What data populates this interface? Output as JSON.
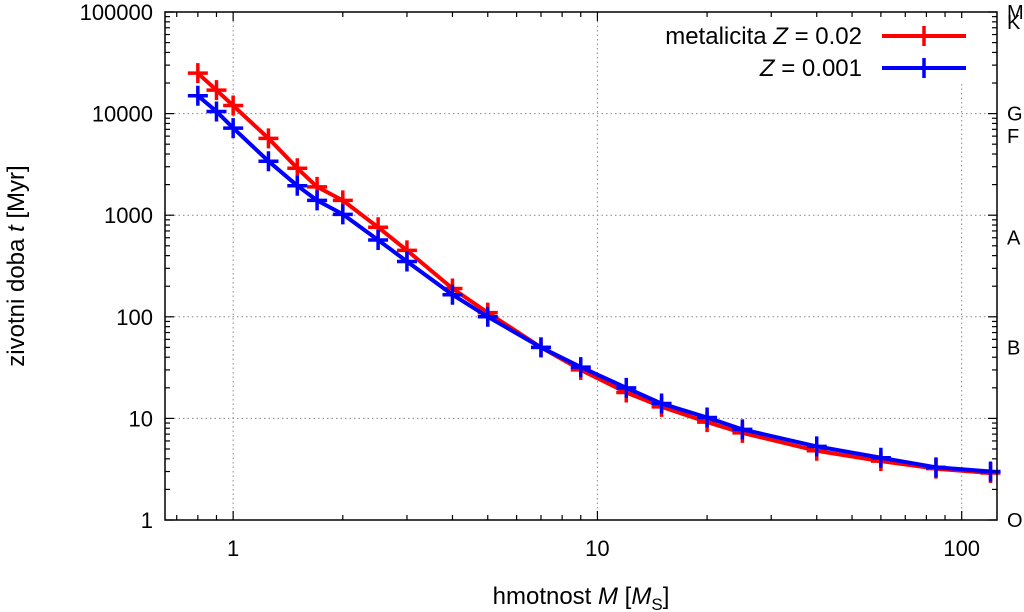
{
  "chart_data": {
    "type": "line",
    "x_scale": "log",
    "y_scale": "log",
    "xlim": [
      0.65,
      125
    ],
    "ylim": [
      1,
      100000
    ],
    "grid": true,
    "legend_placement": "top-right",
    "xlabel": {
      "text": "hmotnost ",
      "var": "M",
      "unit_open": " [",
      "unit": "M",
      "unit_sub": "S",
      "unit_close": "]"
    },
    "ylabel": {
      "text": "zivotni doba ",
      "var": "t",
      "unit": " [Myr]"
    },
    "x_ticks": [
      {
        "value": 1,
        "label": "1"
      },
      {
        "value": 10,
        "label": "10"
      },
      {
        "value": 100,
        "label": "100"
      }
    ],
    "y_ticks": [
      {
        "value": 1,
        "label": "1"
      },
      {
        "value": 10,
        "label": "10"
      },
      {
        "value": 100,
        "label": "100"
      },
      {
        "value": 1000,
        "label": "1000"
      },
      {
        "value": 10000,
        "label": "10000"
      },
      {
        "value": 100000,
        "label": "100000"
      }
    ],
    "right_labels": [
      {
        "y": 100000,
        "label": "M"
      },
      {
        "y": 80000,
        "label": "K"
      },
      {
        "y": 10000,
        "label": "G"
      },
      {
        "y": 6000,
        "label": "F"
      },
      {
        "y": 600,
        "label": "A"
      },
      {
        "y": 50,
        "label": "B"
      },
      {
        "y": 1,
        "label": "O"
      }
    ],
    "series": [
      {
        "name_prefix": "metalicita ",
        "name_var": "Z",
        "name_suffix": " = 0.02",
        "color": "#ff0000",
        "x": [
          0.8,
          0.9,
          1.0,
          1.25,
          1.5,
          1.7,
          2.0,
          2.5,
          3.0,
          4.0,
          5.0,
          7.0,
          9.0,
          12.0,
          15.0,
          20.0,
          25.0,
          40.0,
          60.0,
          85.0,
          120.0
        ],
        "values": [
          25000,
          17000,
          12000,
          5700,
          2900,
          1900,
          1400,
          760,
          450,
          190,
          110,
          50,
          30,
          18,
          13,
          9.2,
          7.2,
          4.8,
          3.8,
          3.2,
          2.9
        ]
      },
      {
        "name_prefix": "",
        "name_var": "Z",
        "name_suffix": " = 0.001",
        "color": "#0000ff",
        "x": [
          0.8,
          0.9,
          1.0,
          1.25,
          1.5,
          1.7,
          2.0,
          2.5,
          3.0,
          4.0,
          5.0,
          7.0,
          9.0,
          12.0,
          15.0,
          20.0,
          25.0,
          40.0,
          60.0,
          85.0,
          120.0
        ],
        "values": [
          15000,
          10500,
          7200,
          3400,
          1950,
          1400,
          1020,
          570,
          350,
          165,
          100,
          50,
          32,
          20,
          14,
          10.2,
          7.8,
          5.3,
          4.1,
          3.3,
          3.0
        ]
      }
    ]
  }
}
